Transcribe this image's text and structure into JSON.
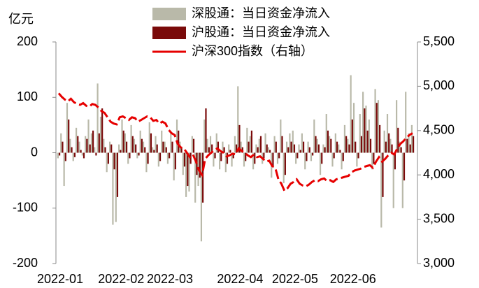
{
  "chart_data": {
    "type": "bar-line",
    "y_label": "亿元",
    "categories": [
      "2022-01",
      null,
      null,
      null,
      null,
      null,
      null,
      null,
      null,
      null,
      null,
      null,
      null,
      null,
      null,
      null,
      null,
      null,
      null,
      null,
      "2022-02",
      null,
      null,
      null,
      null,
      null,
      null,
      null,
      null,
      null,
      null,
      null,
      null,
      null,
      null,
      null,
      "2022-03",
      null,
      null,
      null,
      null,
      null,
      null,
      null,
      null,
      null,
      null,
      null,
      null,
      null,
      null,
      null,
      null,
      null,
      null,
      null,
      null,
      null,
      null,
      "2022-04",
      null,
      null,
      null,
      null,
      null,
      null,
      null,
      null,
      null,
      null,
      null,
      null,
      null,
      null,
      null,
      null,
      null,
      "2022-05",
      null,
      null,
      null,
      null,
      null,
      null,
      null,
      null,
      null,
      null,
      null,
      null,
      null,
      null,
      null,
      null,
      null,
      null,
      "2022-06",
      null,
      null,
      null,
      null,
      null,
      null,
      null,
      null,
      null,
      null,
      null,
      null,
      null,
      null,
      null,
      null,
      null,
      null,
      null,
      null
    ],
    "series": [
      {
        "name": "深股通：当日资金净流入",
        "color": "#b9b9a9",
        "axis": "y",
        "values": [
          -10,
          35,
          -60,
          90,
          25,
          -15,
          45,
          20,
          -5,
          30,
          60,
          35,
          10,
          125,
          65,
          25,
          -35,
          20,
          -130,
          -125,
          15,
          60,
          35,
          -20,
          50,
          25,
          -10,
          40,
          20,
          -35,
          55,
          10,
          30,
          -25,
          40,
          20,
          -20,
          35,
          -50,
          60,
          20,
          -40,
          -80,
          -70,
          30,
          -90,
          -60,
          -160,
          60,
          25,
          30,
          -25,
          35,
          -30,
          20,
          -35,
          15,
          -25,
          30,
          120,
          20,
          -25,
          45,
          30,
          -30,
          15,
          25,
          -20,
          35,
          10,
          -45,
          30,
          -20,
          60,
          -55,
          20,
          35,
          40,
          -20,
          15,
          35,
          -30,
          20,
          -15,
          60,
          25,
          -40,
          15,
          70,
          30,
          -25,
          35,
          15,
          -30,
          50,
          25,
          140,
          90,
          -25,
          70,
          110,
          85,
          60,
          -30,
          115,
          95,
          -135,
          40,
          70,
          25,
          -100,
          95,
          20,
          -100,
          110,
          35,
          50
        ]
      },
      {
        "name": "沪股通：当日资金净流入",
        "color": "#7a0a0a",
        "axis": "y",
        "values": [
          -5,
          20,
          -15,
          60,
          10,
          -8,
          30,
          5,
          -10,
          25,
          15,
          40,
          -5,
          35,
          80,
          10,
          -20,
          15,
          -30,
          -80,
          5,
          40,
          20,
          -10,
          30,
          15,
          -5,
          25,
          10,
          -20,
          35,
          5,
          15,
          -15,
          20,
          10,
          -10,
          20,
          -30,
          40,
          10,
          -25,
          -60,
          -20,
          25,
          -40,
          -45,
          -90,
          80,
          10,
          15,
          -10,
          20,
          -15,
          10,
          -20,
          5,
          -10,
          15,
          50,
          10,
          -15,
          20,
          40,
          -20,
          10,
          30,
          -10,
          15,
          5,
          -25,
          20,
          -10,
          30,
          -40,
          10,
          20,
          15,
          -10,
          5,
          20,
          -15,
          10,
          -5,
          30,
          15,
          -20,
          10,
          40,
          25,
          -10,
          20,
          5,
          -15,
          30,
          15,
          60,
          20,
          -10,
          30,
          80,
          40,
          25,
          -20,
          90,
          50,
          -80,
          20,
          35,
          15,
          -30,
          45,
          10,
          -50,
          25,
          15,
          30
        ]
      },
      {
        "name": "沪深300指数（右轴）",
        "color": "#e60000",
        "axis": "y2",
        "values": [
          4920,
          4880,
          4850,
          4830,
          4860,
          4820,
          4800,
          4790,
          4810,
          4780,
          4770,
          4800,
          4790,
          4760,
          4720,
          4700,
          4650,
          4600,
          4580,
          4570,
          4650,
          4660,
          4640,
          4620,
          4650,
          4640,
          4600,
          4620,
          4640,
          4660,
          4650,
          4610,
          4620,
          4580,
          4600,
          4580,
          4510,
          4470,
          4450,
          4350,
          4310,
          4300,
          4250,
          4200,
          4230,
          4150,
          4050,
          4000,
          4180,
          4220,
          4250,
          4280,
          4300,
          4270,
          4250,
          4210,
          4220,
          4240,
          4230,
          4300,
          4270,
          4250,
          4220,
          4200,
          4230,
          4200,
          4210,
          4180,
          4150,
          4160,
          4100,
          4080,
          3950,
          3900,
          3820,
          3850,
          3900,
          3920,
          3950,
          3900,
          3880,
          3870,
          3890,
          3920,
          3940,
          3930,
          3950,
          3960,
          3930,
          3940,
          3920,
          3950,
          3960,
          3970,
          3980,
          3990,
          4030,
          4050,
          4060,
          4070,
          4090,
          4100,
          4110,
          4080,
          4150,
          4200,
          4150,
          4180,
          4220,
          4250,
          4230,
          4300,
          4350,
          4380,
          4420,
          4450,
          4470
        ]
      }
    ],
    "ylim": [
      -200,
      200
    ],
    "yticks": [
      -200,
      -100,
      0,
      100,
      200
    ],
    "y2lim": [
      3000,
      5500
    ],
    "y2ticks": [
      {
        "value": 3000,
        "label": "3,000"
      },
      {
        "value": 3500,
        "label": "3,500"
      },
      {
        "value": 4000,
        "label": "4,000"
      },
      {
        "value": 4500,
        "label": "4,500"
      },
      {
        "value": 5000,
        "label": "5,000"
      },
      {
        "value": 5500,
        "label": "5,500"
      }
    ],
    "legend": "top"
  }
}
